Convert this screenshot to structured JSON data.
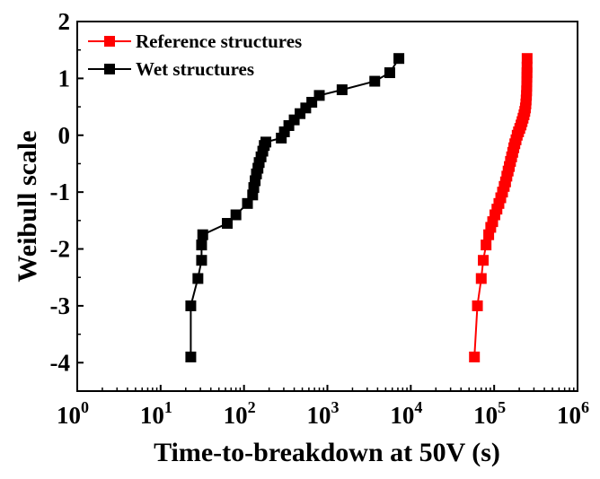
{
  "chart_data": {
    "type": "scatter",
    "title": "",
    "xlabel": "Time-to-breakdown at 50V (s)",
    "ylabel": "Weibull scale",
    "x_scale": "log",
    "xlim": [
      1,
      1000000
    ],
    "ylim": [
      -4.5,
      2
    ],
    "x_ticks": [
      {
        "base": "10",
        "exp": "0"
      },
      {
        "base": "10",
        "exp": "1"
      },
      {
        "base": "10",
        "exp": "2"
      },
      {
        "base": "10",
        "exp": "3"
      },
      {
        "base": "10",
        "exp": "4"
      },
      {
        "base": "10",
        "exp": "5"
      },
      {
        "base": "10",
        "exp": "6"
      }
    ],
    "y_ticks": [
      "-4",
      "-3",
      "-2",
      "-1",
      "0",
      "1",
      "2"
    ],
    "grid": false,
    "legend_position": "top-left",
    "series": [
      {
        "name": "Reference structures",
        "color": "#ff0000",
        "marker": "square",
        "points": [
          [
            58000,
            -3.9
          ],
          [
            63000,
            -3.0
          ],
          [
            70000,
            -2.52
          ],
          [
            74000,
            -2.2
          ],
          [
            80000,
            -1.93
          ],
          [
            86000,
            -1.75
          ],
          [
            91000,
            -1.62
          ],
          [
            96000,
            -1.52
          ],
          [
            102000,
            -1.4
          ],
          [
            108000,
            -1.3
          ],
          [
            114000,
            -1.2
          ],
          [
            120000,
            -1.1
          ],
          [
            126000,
            -1.0
          ],
          [
            132000,
            -0.9
          ],
          [
            137000,
            -0.82
          ],
          [
            142000,
            -0.72
          ],
          [
            147000,
            -0.63
          ],
          [
            152000,
            -0.55
          ],
          [
            157000,
            -0.46
          ],
          [
            162000,
            -0.38
          ],
          [
            167000,
            -0.3
          ],
          [
            172000,
            -0.22
          ],
          [
            177000,
            -0.15
          ],
          [
            183000,
            -0.08
          ],
          [
            189000,
            0.0
          ],
          [
            196000,
            0.06
          ],
          [
            203000,
            0.12
          ],
          [
            210000,
            0.18
          ],
          [
            216000,
            0.24
          ],
          [
            222000,
            0.3
          ],
          [
            228000,
            0.36
          ],
          [
            233000,
            0.42
          ],
          [
            237000,
            0.48
          ],
          [
            240000,
            0.55
          ],
          [
            242000,
            0.62
          ],
          [
            244000,
            0.7
          ],
          [
            245000,
            0.78
          ],
          [
            246000,
            0.86
          ],
          [
            246500,
            0.94
          ],
          [
            247000,
            1.02
          ],
          [
            247500,
            1.1
          ],
          [
            248000,
            1.2
          ],
          [
            248500,
            1.35
          ]
        ]
      },
      {
        "name": "Wet structures",
        "color": "#000000",
        "marker": "square",
        "points": [
          [
            23,
            -3.9
          ],
          [
            23,
            -3.0
          ],
          [
            28,
            -2.52
          ],
          [
            31,
            -2.2
          ],
          [
            31,
            -1.93
          ],
          [
            32,
            -1.75
          ],
          [
            63,
            -1.55
          ],
          [
            80,
            -1.4
          ],
          [
            110,
            -1.2
          ],
          [
            127,
            -1.05
          ],
          [
            131,
            -0.92
          ],
          [
            136,
            -0.8
          ],
          [
            141,
            -0.68
          ],
          [
            147,
            -0.58
          ],
          [
            152,
            -0.48
          ],
          [
            160,
            -0.38
          ],
          [
            168,
            -0.28
          ],
          [
            175,
            -0.18
          ],
          [
            183,
            -0.12
          ],
          [
            280,
            -0.05
          ],
          [
            305,
            0.06
          ],
          [
            345,
            0.17
          ],
          [
            400,
            0.27
          ],
          [
            470,
            0.38
          ],
          [
            550,
            0.48
          ],
          [
            650,
            0.58
          ],
          [
            800,
            0.7
          ],
          [
            1500,
            0.8
          ],
          [
            3700,
            0.95
          ],
          [
            5600,
            1.1
          ],
          [
            7200,
            1.35
          ]
        ]
      }
    ]
  }
}
